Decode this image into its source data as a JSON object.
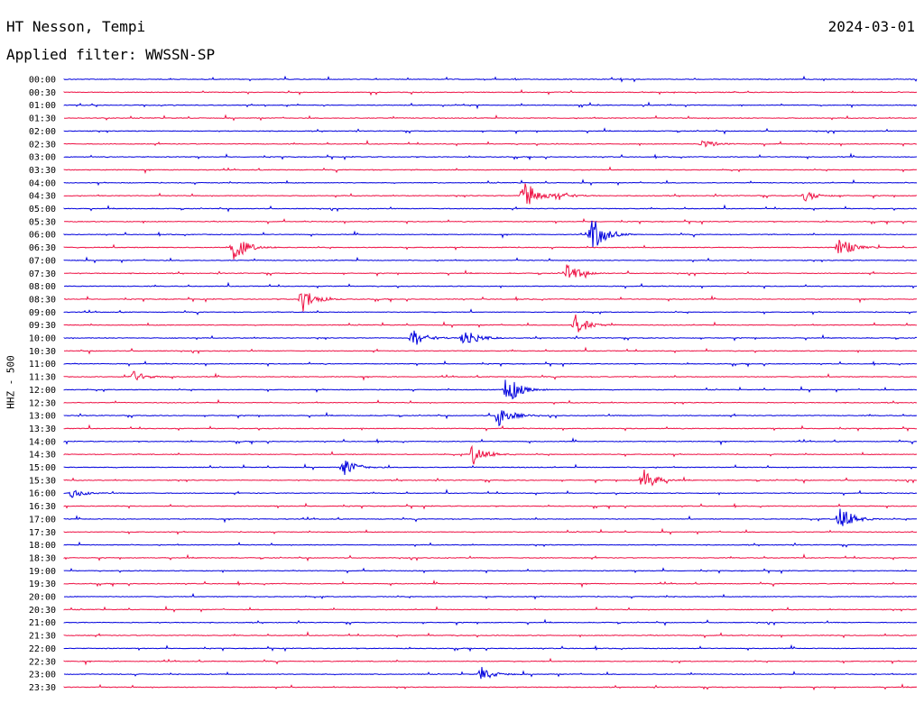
{
  "header": {
    "station": "HT Nesson, Tempi",
    "filter": "Applied filter: WWSSN-SP",
    "date": "2024-03-01"
  },
  "chart_data": {
    "type": "helicorder",
    "channel_label": "HHZ - 500",
    "colors": [
      "#0000dd",
      "#ee1144"
    ],
    "rows": [
      {
        "label": "00:00",
        "events": []
      },
      {
        "label": "00:30",
        "events": []
      },
      {
        "label": "01:00",
        "events": []
      },
      {
        "label": "01:30",
        "events": []
      },
      {
        "label": "02:00",
        "events": []
      },
      {
        "label": "02:30",
        "events": [
          {
            "t": 0.75,
            "a": 5
          }
        ]
      },
      {
        "label": "03:00",
        "events": []
      },
      {
        "label": "03:30",
        "events": []
      },
      {
        "label": "04:00",
        "events": []
      },
      {
        "label": "04:30",
        "events": [
          {
            "t": 0.54,
            "a": 20
          },
          {
            "t": 0.58,
            "a": 5
          },
          {
            "t": 0.87,
            "a": 6
          }
        ]
      },
      {
        "label": "05:00",
        "events": []
      },
      {
        "label": "05:30",
        "events": []
      },
      {
        "label": "06:00",
        "events": [
          {
            "t": 0.62,
            "a": 20
          }
        ]
      },
      {
        "label": "06:30",
        "events": [
          {
            "t": 0.2,
            "a": 16
          },
          {
            "t": 0.91,
            "a": 12
          }
        ]
      },
      {
        "label": "07:00",
        "events": []
      },
      {
        "label": "07:30",
        "events": [
          {
            "t": 0.59,
            "a": 12
          }
        ]
      },
      {
        "label": "08:00",
        "events": []
      },
      {
        "label": "08:30",
        "events": [
          {
            "t": 0.28,
            "a": 14
          }
        ]
      },
      {
        "label": "09:00",
        "events": []
      },
      {
        "label": "09:30",
        "events": [
          {
            "t": 0.6,
            "a": 12
          }
        ]
      },
      {
        "label": "10:00",
        "events": [
          {
            "t": 0.41,
            "a": 10
          },
          {
            "t": 0.47,
            "a": 12
          }
        ]
      },
      {
        "label": "10:30",
        "events": []
      },
      {
        "label": "11:00",
        "events": []
      },
      {
        "label": "11:30",
        "events": [
          {
            "t": 0.08,
            "a": 7
          }
        ]
      },
      {
        "label": "12:00",
        "events": [
          {
            "t": 0.52,
            "a": 17
          }
        ]
      },
      {
        "label": "12:30",
        "events": []
      },
      {
        "label": "13:00",
        "events": [
          {
            "t": 0.51,
            "a": 13
          }
        ]
      },
      {
        "label": "13:30",
        "events": []
      },
      {
        "label": "14:00",
        "events": []
      },
      {
        "label": "14:30",
        "events": [
          {
            "t": 0.48,
            "a": 12
          }
        ]
      },
      {
        "label": "15:00",
        "events": [
          {
            "t": 0.33,
            "a": 10
          }
        ]
      },
      {
        "label": "15:30",
        "events": [
          {
            "t": 0.68,
            "a": 13
          }
        ]
      },
      {
        "label": "16:00",
        "events": [
          {
            "t": 0.01,
            "a": 5
          }
        ]
      },
      {
        "label": "16:30",
        "events": []
      },
      {
        "label": "17:00",
        "events": [
          {
            "t": 0.91,
            "a": 16
          }
        ]
      },
      {
        "label": "17:30",
        "events": []
      },
      {
        "label": "18:00",
        "events": []
      },
      {
        "label": "18:30",
        "events": []
      },
      {
        "label": "19:00",
        "events": []
      },
      {
        "label": "19:30",
        "events": []
      },
      {
        "label": "20:00",
        "events": []
      },
      {
        "label": "20:30",
        "events": []
      },
      {
        "label": "21:00",
        "events": []
      },
      {
        "label": "21:30",
        "events": []
      },
      {
        "label": "22:00",
        "events": []
      },
      {
        "label": "22:30",
        "events": []
      },
      {
        "label": "23:00",
        "events": [
          {
            "t": 0.49,
            "a": 8
          }
        ]
      },
      {
        "label": "23:30",
        "events": []
      }
    ]
  }
}
